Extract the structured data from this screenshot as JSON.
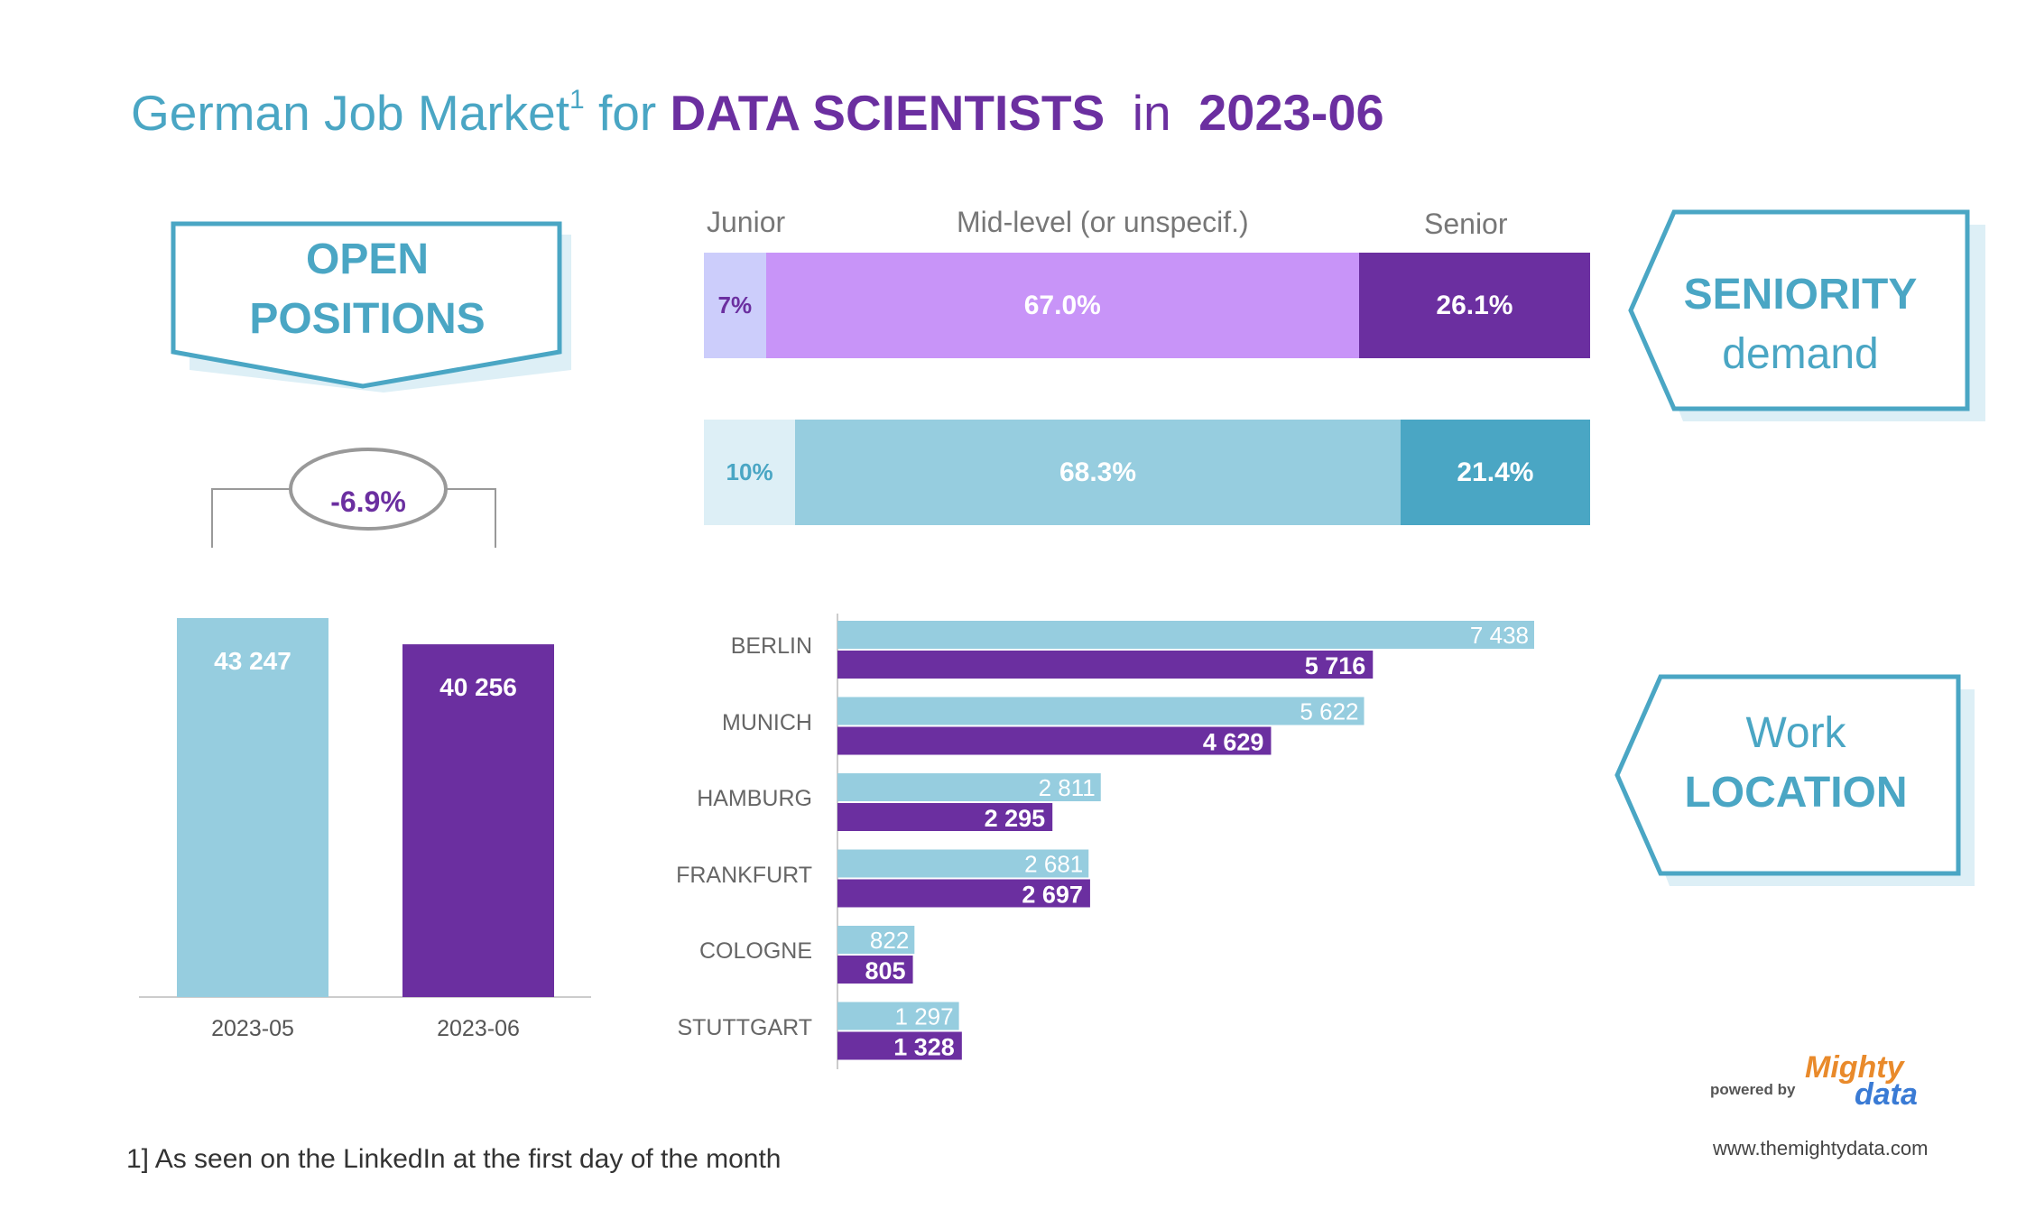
{
  "title": {
    "prefix": "German Job Market",
    "footnote_mark": "1",
    "for": "for",
    "subject": "DATA SCIENTISTS",
    "in": "in",
    "date": "2023-06"
  },
  "banners": {
    "open_positions": [
      "OPEN",
      "POSITIONS"
    ],
    "seniority": [
      "SENIORITY",
      "demand"
    ],
    "work_location": [
      "Work",
      "LOCATION"
    ]
  },
  "colors": {
    "teal": "#4aa6c4",
    "purple": "#6b2fa0",
    "light_blue": "#96cddf",
    "lavender": "#c894f8",
    "pale_lavender": "#cccdfb",
    "pale_blue": "#ddeff6"
  },
  "chart_data": [
    {
      "type": "bar",
      "categories": [
        "2023-05",
        "2023-06"
      ],
      "values": [
        43247,
        40256
      ],
      "value_labels": [
        "43 247",
        "40 256"
      ],
      "change_label": "-6.9%"
    },
    {
      "type": "bar",
      "stacked": true,
      "categories": [
        "Junior",
        "Mid-level (or unspecif.)",
        "Senior"
      ],
      "series": [
        {
          "values": [
            7.0,
            67.0,
            26.1
          ],
          "labels": [
            "7%",
            "67.0%",
            "26.1%"
          ]
        },
        {
          "values": [
            10.3,
            68.3,
            21.4
          ],
          "labels": [
            "10%",
            "68.3%",
            "21.4%"
          ]
        }
      ]
    },
    {
      "type": "bar",
      "orientation": "horizontal",
      "categories": [
        "BERLIN",
        "MUNICH",
        "HAMBURG",
        "FRANKFURT",
        "COLOGNE",
        "STUTTGART"
      ],
      "series": [
        {
          "values": [
            7438,
            5622,
            2811,
            2681,
            822,
            1297
          ],
          "labels": [
            "7 438",
            "5 622",
            "2 811",
            "2 681",
            "822",
            "1 297"
          ]
        },
        {
          "values": [
            5716,
            4629,
            2295,
            2697,
            805,
            1328
          ],
          "labels": [
            "5 716",
            "4 629",
            "2 295",
            "2 697",
            "805",
            "1 328"
          ]
        }
      ]
    }
  ],
  "footnote": "1] As seen on the LinkedIn at the first day of the month",
  "brand": {
    "powered_by": "powered by",
    "logo_top": "Mighty",
    "logo_bottom": "data",
    "url": "www.themightydata.com"
  }
}
